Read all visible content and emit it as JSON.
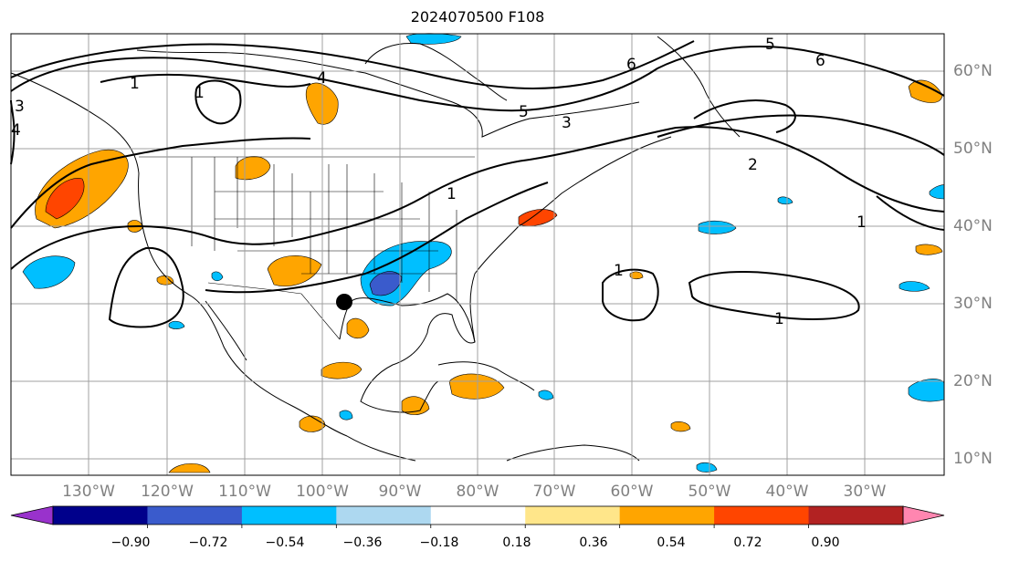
{
  "title": "2024070500 F108",
  "longitude_labels": [
    "130°W",
    "120°W",
    "110°W",
    "100°W",
    "90°W",
    "80°W",
    "70°W",
    "60°W",
    "50°W",
    "40°W",
    "30°W"
  ],
  "latitude_labels": [
    "60°N",
    "50°N",
    "40°N",
    "30°N",
    "20°N",
    "10°N"
  ],
  "colorbar": {
    "ticks": [
      "−0.90",
      "−0.72",
      "−0.54",
      "−0.36",
      "−0.18",
      "0.18",
      "0.36",
      "0.54",
      "0.72",
      "0.90"
    ],
    "colors": [
      "#9932cc",
      "#00008b",
      "#3a5bcc",
      "#00bfff",
      "#add8f0",
      "#ffffff",
      "#ffe68a",
      "#ffa500",
      "#ff4500",
      "#b22222",
      "#ff86b0"
    ],
    "extend": "both"
  },
  "contour_labels": [
    "1",
    "1",
    "4",
    "3",
    "4",
    "6",
    "5",
    "3",
    "6",
    "5",
    "2",
    "1",
    "1",
    "1",
    "1"
  ],
  "marker": {
    "lon": -96.5,
    "lat": 30.3,
    "color": "#000000"
  },
  "colors": {
    "positive_fill": "#ffa500",
    "strong_positive_fill": "#ff4500",
    "negative_fill": "#00bfff",
    "strong_negative_fill": "#3a5bcc",
    "contour": "#000000",
    "grid": "#a0a0a0"
  }
}
